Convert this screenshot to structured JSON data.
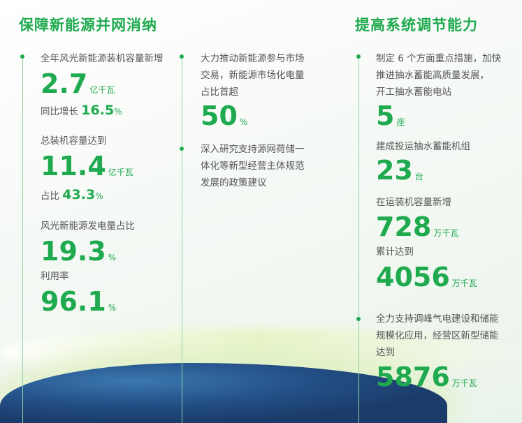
{
  "left": {
    "title": "保障新能源并网消纳",
    "item1_label": "全年风光新能源装机容量新增",
    "item1_value": "2.7",
    "item1_unit": "亿千瓦",
    "item1_sub_label": "同比增长",
    "item1_sub_value": "16.5",
    "item1_sub_unit": "%",
    "item2_label": "总装机容量达到",
    "item2_value": "11.4",
    "item2_unit": "亿千瓦",
    "item2_sub_label": "占比",
    "item2_sub_value": "43.3",
    "item2_sub_unit": "%",
    "item3_label": "风光新能源发电量占比",
    "item3_value": "19.3",
    "item3_unit": "%",
    "item4_label": "利用率",
    "item4_value": "96.1",
    "item4_unit": "%"
  },
  "middle": {
    "item1_lines": [
      "大力推动新能源参与市场",
      "交易，新能源市场化电量",
      "占比首超"
    ],
    "item1_value": "50",
    "item1_unit": "%",
    "item2_lines": [
      "深入研究支持源网荷储一",
      "体化等新型经营主体规范",
      "发展的政策建议"
    ]
  },
  "right": {
    "title": "提高系统调节能力",
    "item1_lines": [
      "制定 6 个方面重点措施，加快",
      "推进抽水蓄能高质量发展，",
      "开工抽水蓄能电站"
    ],
    "item1_value": "5",
    "item1_unit": "座",
    "item2_label": "建成投运抽水蓄能机组",
    "item2_value": "23",
    "item2_unit": "台",
    "item3_label": "在运装机容量新增",
    "item3_value": "728",
    "item3_unit": "万千瓦",
    "item4_label": "累计达到",
    "item4_value": "4056",
    "item4_unit": "万千瓦",
    "item5_lines": [
      "全力支持调峰气电建设和储能",
      "规模化应用，经营区新型储能",
      "达到"
    ],
    "item5_value": "5876",
    "item5_unit": "万千瓦"
  },
  "colors": {
    "accent": "#1faa4f"
  }
}
